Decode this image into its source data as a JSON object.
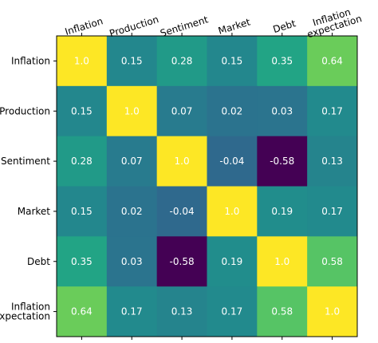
{
  "chart_data": {
    "type": "heatmap",
    "title": "",
    "xlabel": "",
    "ylabel": "",
    "x_labels": [
      "Inflation",
      "Production",
      "Sentiment",
      "Market",
      "Debt",
      "Inflation\nexpectation"
    ],
    "y_labels": [
      "Inflation",
      "Production",
      "Sentiment",
      "Market",
      "Debt",
      "Inflation\nexpectation"
    ],
    "values": [
      [
        1.0,
        0.15,
        0.28,
        0.15,
        0.35,
        0.64
      ],
      [
        0.15,
        1.0,
        0.07,
        0.02,
        0.03,
        0.17
      ],
      [
        0.28,
        0.07,
        1.0,
        -0.04,
        -0.58,
        0.13
      ],
      [
        0.15,
        0.02,
        -0.04,
        1.0,
        0.19,
        0.17
      ],
      [
        0.35,
        0.03,
        -0.58,
        0.19,
        1.0,
        0.58
      ],
      [
        0.64,
        0.17,
        0.13,
        0.17,
        0.58,
        1.0
      ]
    ],
    "value_labels": [
      [
        "1.0",
        "0.15",
        "0.28",
        "0.15",
        "0.35",
        "0.64"
      ],
      [
        "0.15",
        "1.0",
        "0.07",
        "0.02",
        "0.03",
        "0.17"
      ],
      [
        "0.28",
        "0.07",
        "1.0",
        "-0.04",
        "-0.58",
        "0.13"
      ],
      [
        "0.15",
        "0.02",
        "-0.04",
        "1.0",
        "0.19",
        "0.17"
      ],
      [
        "0.35",
        "0.03",
        "-0.58",
        "0.19",
        "1.0",
        "0.58"
      ],
      [
        "0.64",
        "0.17",
        "0.13",
        "0.17",
        "0.58",
        "1.0"
      ]
    ],
    "value_range": [
      -0.58,
      1.0
    ],
    "colormap": "viridis",
    "x_tick_position": "top",
    "x_tick_rotation": "rotated",
    "grid": false,
    "legend": "none"
  }
}
